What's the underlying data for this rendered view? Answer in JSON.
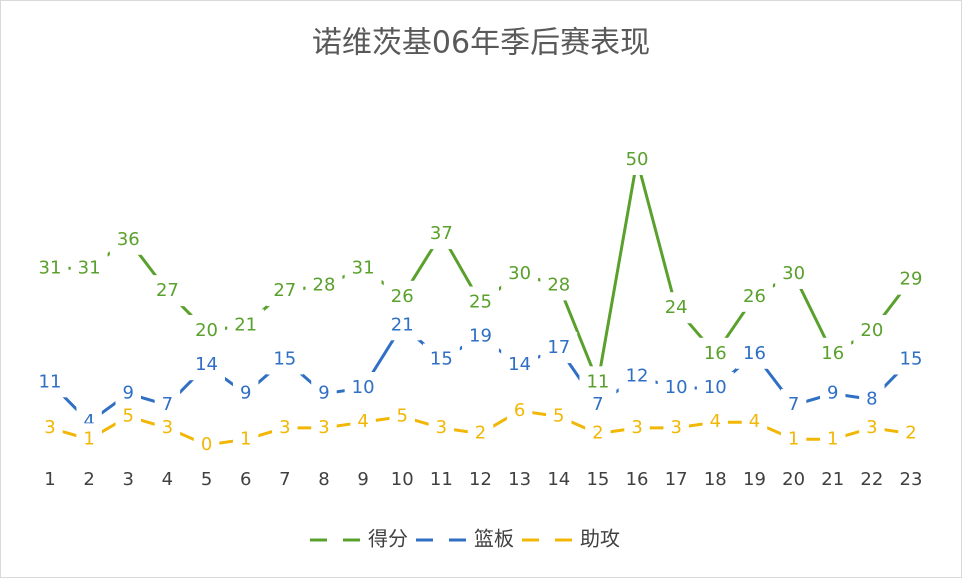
{
  "chart_data": {
    "type": "line",
    "title": "诺维茨基06年季后赛表现",
    "categories": [
      "1",
      "2",
      "3",
      "4",
      "5",
      "6",
      "7",
      "8",
      "9",
      "10",
      "11",
      "12",
      "13",
      "14",
      "15",
      "16",
      "17",
      "18",
      "19",
      "20",
      "21",
      "22",
      "23"
    ],
    "series": [
      {
        "name": "得分",
        "color": "#5aa02c",
        "values": [
          31,
          31,
          36,
          27,
          20,
          21,
          27,
          28,
          31,
          26,
          37,
          25,
          30,
          28,
          11,
          50,
          24,
          16,
          26,
          30,
          16,
          20,
          29
        ]
      },
      {
        "name": "篮板",
        "color": "#2f6fc4",
        "values": [
          11,
          4,
          9,
          7,
          14,
          9,
          15,
          9,
          10,
          21,
          15,
          19,
          14,
          17,
          7,
          12,
          10,
          10,
          16,
          7,
          9,
          8,
          15
        ]
      },
      {
        "name": "助攻",
        "color": "#f2b705",
        "values": [
          3,
          1,
          5,
          3,
          0,
          1,
          3,
          3,
          4,
          5,
          3,
          2,
          6,
          5,
          2,
          3,
          3,
          4,
          4,
          1,
          1,
          3,
          2
        ]
      }
    ],
    "ylim": [
      0,
      60
    ],
    "legend": "bottom"
  }
}
